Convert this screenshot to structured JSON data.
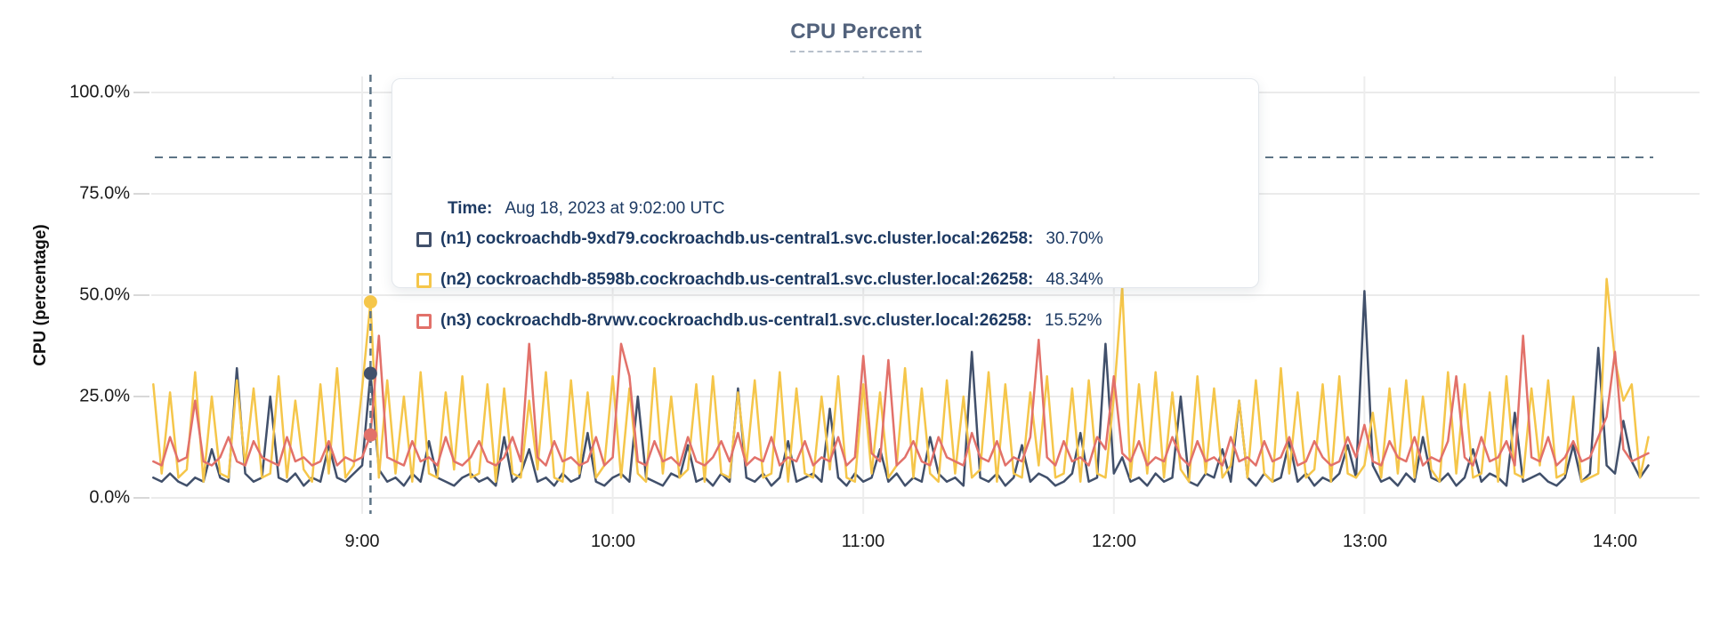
{
  "title": "CPU Percent",
  "y_axis": {
    "label": "CPU (percentage)",
    "ticks": [
      "100.0%",
      "75.0%",
      "50.0%",
      "25.0%",
      "0.0%"
    ]
  },
  "x_axis": {
    "ticks": [
      "9:00",
      "10:00",
      "11:00",
      "12:00",
      "13:00",
      "14:00"
    ]
  },
  "colors": {
    "n1": "#41506b",
    "n2": "#f5c64a",
    "n3": "#e2716a",
    "title": "#52627c",
    "tooltip_text": "#1d3a63",
    "gridline": "#ebebeb",
    "dashed_guide": "#5d7486"
  },
  "tooltip": {
    "time_label": "Time:",
    "time_value": "Aug 18, 2023 at 9:02:00 UTC",
    "rows": [
      {
        "series": "n1",
        "color": "#41506b",
        "label": "(n1) cockroachdb-9xd79.cockroachdb.us-central1.svc.cluster.local:26258:",
        "value": "30.70%"
      },
      {
        "series": "n2",
        "color": "#f5c64a",
        "label": "(n2) cockroachdb-8598b.cockroachdb.us-central1.svc.cluster.local:26258:",
        "value": "48.34%"
      },
      {
        "series": "n3",
        "color": "#e2716a",
        "label": "(n3) cockroachdb-8rvwv.cockroachdb.us-central1.svc.cluster.local:26258:",
        "value": "15.52%"
      }
    ]
  },
  "chart_data": {
    "type": "line",
    "title": "CPU Percent",
    "xlabel": "",
    "ylabel": "CPU (percentage)",
    "ylim": [
      0,
      100
    ],
    "y_ticks_percent": [
      0,
      25,
      50,
      75,
      100
    ],
    "x_tick_labels": [
      "9:00",
      "10:00",
      "11:00",
      "12:00",
      "13:00",
      "14:00"
    ],
    "x_ticks_minutes": [
      540,
      600,
      660,
      720,
      780,
      840
    ],
    "start_minutes": 490,
    "step_minutes": 2,
    "dashed_hline_percent": 84,
    "hover": {
      "time_minutes": 542,
      "time_text": "Aug 18, 2023 at 9:02:00 UTC",
      "values": {
        "n1": 30.7,
        "n2": 48.34,
        "n3": 15.52
      }
    },
    "legend_position": "tooltip",
    "grid": true,
    "series": [
      {
        "name": "(n1) cockroachdb-9xd79.cockroachdb.us-central1.svc.cluster.local:26258",
        "color": "#41506b",
        "values": [
          5,
          4,
          6,
          4,
          3,
          5,
          4,
          12,
          5,
          4,
          32,
          6,
          4,
          5,
          25,
          5,
          4,
          6,
          3,
          5,
          4,
          13,
          5,
          4,
          6,
          8,
          30.7,
          7,
          4,
          5,
          3,
          6,
          4,
          14,
          5,
          4,
          3,
          5,
          6,
          4,
          5,
          3,
          15,
          4,
          6,
          12,
          4,
          5,
          3,
          6,
          4,
          5,
          16,
          4,
          3,
          5,
          6,
          4,
          25,
          5,
          4,
          3,
          6,
          5,
          13,
          4,
          5,
          3,
          6,
          4,
          27,
          5,
          4,
          6,
          3,
          5,
          14,
          4,
          5,
          6,
          4,
          22,
          5,
          3,
          6,
          4,
          5,
          12,
          4,
          6,
          3,
          5,
          4,
          15,
          6,
          4,
          5,
          3,
          36,
          5,
          4,
          6,
          3,
          5,
          13,
          4,
          6,
          5,
          3,
          4,
          6,
          16,
          4,
          5,
          38,
          6,
          10,
          4,
          5,
          3,
          6,
          4,
          5,
          25,
          4,
          3,
          6,
          5,
          12,
          4,
          24,
          5,
          3,
          6,
          4,
          5,
          14,
          4,
          6,
          3,
          5,
          4,
          6,
          13,
          5,
          51,
          8,
          4,
          5,
          3,
          6,
          4,
          15,
          5,
          4,
          6,
          3,
          5,
          12,
          4,
          6,
          5,
          3,
          21,
          4,
          5,
          6,
          4,
          3,
          5,
          13,
          4,
          6,
          37,
          8,
          6,
          19,
          9,
          5,
          8
        ]
      },
      {
        "name": "(n2) cockroachdb-8598b.cockroachdb.us-central1.svc.cluster.local:26258",
        "color": "#f5c64a",
        "values": [
          28,
          6,
          26,
          5,
          7,
          31,
          4,
          25,
          6,
          5,
          29,
          8,
          27,
          5,
          6,
          30,
          5,
          24,
          7,
          4,
          28,
          6,
          32,
          5,
          8,
          27,
          48.34,
          5,
          29,
          6,
          25,
          4,
          31,
          6,
          5,
          26,
          7,
          30,
          5,
          6,
          28,
          4,
          27,
          6,
          5,
          24,
          7,
          31,
          5,
          4,
          29,
          6,
          26,
          5,
          8,
          30,
          5,
          27,
          6,
          4,
          32,
          6,
          25,
          5,
          7,
          28,
          4,
          30,
          6,
          5,
          26,
          8,
          29,
          5,
          6,
          31,
          4,
          27,
          6,
          5,
          25,
          7,
          30,
          5,
          4,
          28,
          6,
          26,
          5,
          8,
          32,
          5,
          27,
          6,
          4,
          29,
          6,
          25,
          5,
          7,
          31,
          4,
          28,
          6,
          5,
          26,
          8,
          30,
          5,
          6,
          27,
          4,
          29,
          6,
          5,
          25,
          52,
          5,
          28,
          6,
          31,
          5,
          26,
          7,
          4,
          30,
          6,
          27,
          5,
          8,
          24,
          5,
          29,
          6,
          4,
          32,
          6,
          26,
          5,
          7,
          28,
          4,
          30,
          6,
          5,
          8,
          21,
          5,
          27,
          6,
          29,
          5,
          25,
          7,
          4,
          31,
          6,
          28,
          5,
          6,
          26,
          4,
          30,
          6,
          5,
          27,
          8,
          29,
          5,
          6,
          25,
          4,
          5,
          6,
          54,
          34,
          24,
          28,
          5,
          15
        ]
      },
      {
        "name": "(n3) cockroachdb-8rvwv.cockroachdb.us-central1.svc.cluster.local:26258",
        "color": "#e2716a",
        "values": [
          9,
          8,
          15,
          9,
          10,
          24,
          9,
          8,
          10,
          15,
          9,
          8,
          14,
          10,
          9,
          8,
          15,
          9,
          10,
          8,
          9,
          14,
          8,
          10,
          9,
          10,
          15.52,
          40,
          10,
          9,
          8,
          14,
          9,
          10,
          8,
          15,
          9,
          8,
          10,
          14,
          9,
          8,
          10,
          15,
          9,
          38,
          10,
          8,
          14,
          9,
          10,
          8,
          9,
          15,
          8,
          10,
          38,
          30,
          9,
          8,
          14,
          9,
          10,
          8,
          15,
          9,
          8,
          10,
          14,
          9,
          16,
          8,
          10,
          9,
          15,
          8,
          10,
          9,
          14,
          8,
          10,
          9,
          15,
          8,
          10,
          35,
          11,
          9,
          34,
          8,
          10,
          14,
          9,
          8,
          15,
          10,
          9,
          8,
          16,
          10,
          9,
          14,
          8,
          10,
          9,
          15,
          39,
          10,
          8,
          14,
          9,
          10,
          8,
          15,
          12,
          30,
          11,
          9,
          14,
          8,
          10,
          9,
          15,
          10,
          8,
          14,
          9,
          10,
          8,
          15,
          9,
          10,
          8,
          14,
          9,
          10,
          15,
          8,
          9,
          14,
          10,
          8,
          9,
          15,
          10,
          18,
          9,
          8,
          14,
          10,
          9,
          15,
          8,
          10,
          9,
          14,
          30,
          10,
          8,
          15,
          9,
          10,
          14,
          8,
          40,
          10,
          9,
          15,
          8,
          10,
          14,
          9,
          10,
          15,
          20,
          36,
          12,
          9,
          10,
          11
        ]
      }
    ]
  }
}
